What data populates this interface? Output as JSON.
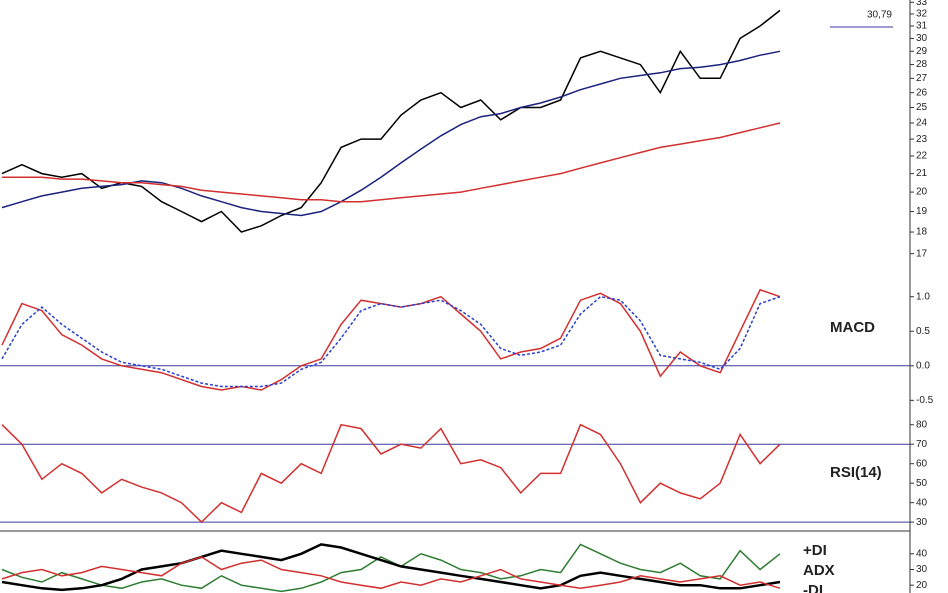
{
  "chart_data": [
    {
      "type": "line",
      "log": true,
      "ylim": [
        16.5,
        33.2
      ],
      "yticks": [
        17,
        18,
        19,
        20,
        21,
        22,
        23,
        24,
        25,
        26,
        27,
        28,
        29,
        30,
        31,
        32,
        33
      ],
      "annotation": "30,79",
      "series": [
        {
          "color": "#000000",
          "values": [
            21,
            21.5,
            21,
            20.8,
            21,
            20.2,
            20.5,
            20.3,
            19.5,
            19,
            18.5,
            19,
            18,
            18.3,
            18.8,
            19.2,
            20.5,
            22.5,
            23,
            23,
            24.5,
            25.5,
            26,
            25,
            25.5,
            24.2,
            25,
            25,
            25.5,
            28.5,
            29,
            28.5,
            28,
            26,
            29,
            27,
            27,
            30,
            31,
            32.3
          ]
        },
        {
          "color": "#1a237e",
          "values": [
            19.2,
            19.5,
            19.8,
            20,
            20.2,
            20.3,
            20.4,
            20.6,
            20.5,
            20.2,
            19.8,
            19.5,
            19.2,
            19,
            18.9,
            18.8,
            19,
            19.5,
            20.1,
            20.8,
            21.6,
            22.4,
            23.2,
            23.9,
            24.4,
            24.6,
            25,
            25.3,
            25.7,
            26.2,
            26.6,
            27,
            27.2,
            27.4,
            27.7,
            27.8,
            28,
            28.3,
            28.7,
            29
          ]
        },
        {
          "color": "#d32f2f",
          "values": [
            20.8,
            20.8,
            20.8,
            20.7,
            20.7,
            20.6,
            20.5,
            20.5,
            20.4,
            20.3,
            20.1,
            20,
            19.9,
            19.8,
            19.7,
            19.6,
            19.6,
            19.5,
            19.5,
            19.6,
            19.7,
            19.8,
            19.9,
            20,
            20.2,
            20.4,
            20.6,
            20.8,
            21,
            21.3,
            21.6,
            21.9,
            22.2,
            22.5,
            22.7,
            22.9,
            23.1,
            23.4,
            23.7,
            24
          ]
        }
      ]
    },
    {
      "type": "line",
      "title": "MACD",
      "ylim": [
        -0.64,
        1.17
      ],
      "yticks": [
        {
          "value": 1,
          "label": "1.0"
        },
        {
          "value": 0.5,
          "label": "0.5"
        },
        {
          "value": 0,
          "label": "0.0"
        },
        {
          "value": -0.5,
          "label": "-0.5"
        }
      ],
      "hlines": [
        0
      ],
      "hline_color": "#3a3aa0",
      "series": [
        {
          "color": "#d32f2f",
          "values": [
            0.3,
            0.9,
            0.8,
            0.45,
            0.3,
            0.1,
            0,
            -0.05,
            -0.1,
            -0.2,
            -0.3,
            -0.35,
            -0.3,
            -0.35,
            -0.2,
            0,
            0.1,
            0.6,
            0.95,
            0.9,
            0.85,
            0.9,
            1.0,
            0.75,
            0.5,
            0.1,
            0.2,
            0.25,
            0.4,
            0.95,
            1.05,
            0.9,
            0.5,
            -0.15,
            0.2,
            0,
            -0.1,
            0.5,
            1.1,
            1.0
          ]
        },
        {
          "color": "#2a3fd0",
          "dash": true,
          "values": [
            0.1,
            0.6,
            0.85,
            0.6,
            0.4,
            0.2,
            0.05,
            0,
            -0.05,
            -0.15,
            -0.25,
            -0.3,
            -0.3,
            -0.3,
            -0.25,
            -0.05,
            0.05,
            0.4,
            0.8,
            0.9,
            0.85,
            0.9,
            0.95,
            0.8,
            0.6,
            0.25,
            0.15,
            0.2,
            0.3,
            0.75,
            1.0,
            0.95,
            0.65,
            0.15,
            0.1,
            0.05,
            -0.05,
            0.25,
            0.9,
            1.0
          ]
        }
      ]
    },
    {
      "type": "line",
      "title": "RSI(14)",
      "ylim": [
        27.5,
        85
      ],
      "yticks": [
        30,
        40,
        50,
        60,
        70,
        80
      ],
      "hlines": [
        70,
        30
      ],
      "hline_color": "#3a3aa0",
      "series": [
        {
          "color": "#d32f2f",
          "values": [
            80,
            70,
            52,
            60,
            55,
            45,
            52,
            48,
            45,
            40,
            30,
            40,
            35,
            55,
            50,
            60,
            55,
            80,
            78,
            65,
            70,
            68,
            78,
            60,
            62,
            58,
            45,
            55,
            55,
            80,
            75,
            60,
            40,
            50,
            45,
            42,
            50,
            75,
            60,
            70
          ]
        }
      ]
    },
    {
      "type": "line",
      "ylim": [
        15,
        52
      ],
      "yticks": [
        20,
        30,
        40
      ],
      "series": [
        {
          "name": "+DI",
          "color": "#2e7d32",
          "values": [
            30,
            25,
            22,
            28,
            24,
            20,
            18,
            22,
            24,
            20,
            18,
            26,
            20,
            18,
            16,
            18,
            22,
            28,
            30,
            38,
            32,
            40,
            36,
            30,
            28,
            24,
            26,
            30,
            28,
            46,
            40,
            34,
            30,
            28,
            34,
            26,
            24,
            42,
            30,
            40
          ]
        },
        {
          "name": "ADX",
          "color": "#000000",
          "width": 2.5,
          "values": [
            22,
            20,
            18,
            17,
            18,
            20,
            24,
            30,
            32,
            34,
            38,
            42,
            40,
            38,
            36,
            40,
            46,
            44,
            40,
            36,
            32,
            30,
            28,
            26,
            24,
            22,
            20,
            18,
            20,
            26,
            28,
            26,
            24,
            22,
            20,
            20,
            18,
            18,
            20,
            22
          ]
        },
        {
          "name": "-DI",
          "color": "#d32f2f",
          "values": [
            24,
            28,
            30,
            26,
            28,
            32,
            30,
            28,
            26,
            34,
            38,
            30,
            34,
            36,
            30,
            28,
            26,
            22,
            20,
            18,
            22,
            20,
            24,
            22,
            26,
            30,
            24,
            22,
            20,
            18,
            20,
            22,
            26,
            24,
            22,
            24,
            26,
            20,
            22,
            18
          ]
        }
      ]
    }
  ]
}
